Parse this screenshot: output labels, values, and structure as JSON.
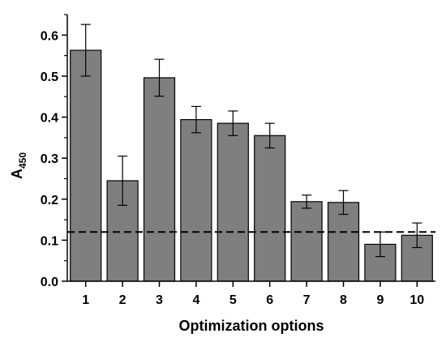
{
  "chart_data": {
    "type": "bar",
    "categories": [
      "1",
      "2",
      "3",
      "4",
      "5",
      "6",
      "7",
      "8",
      "9",
      "10"
    ],
    "values": [
      0.563,
      0.245,
      0.496,
      0.394,
      0.385,
      0.355,
      0.194,
      0.192,
      0.09,
      0.112
    ],
    "errors": [
      0.063,
      0.06,
      0.045,
      0.032,
      0.03,
      0.03,
      0.016,
      0.029,
      0.03,
      0.03
    ],
    "xlabel": "Optimization options",
    "ylabel_main": "A",
    "ylabel_sub": "450",
    "ylim": [
      0,
      0.65
    ],
    "yticks": [
      "0.0",
      "0.1",
      "0.2",
      "0.3",
      "0.4",
      "0.5",
      "0.6"
    ],
    "reference_line": 0.12,
    "grid": false,
    "bar_color": "#7f7f7f",
    "bar_stroke": "#000000"
  }
}
